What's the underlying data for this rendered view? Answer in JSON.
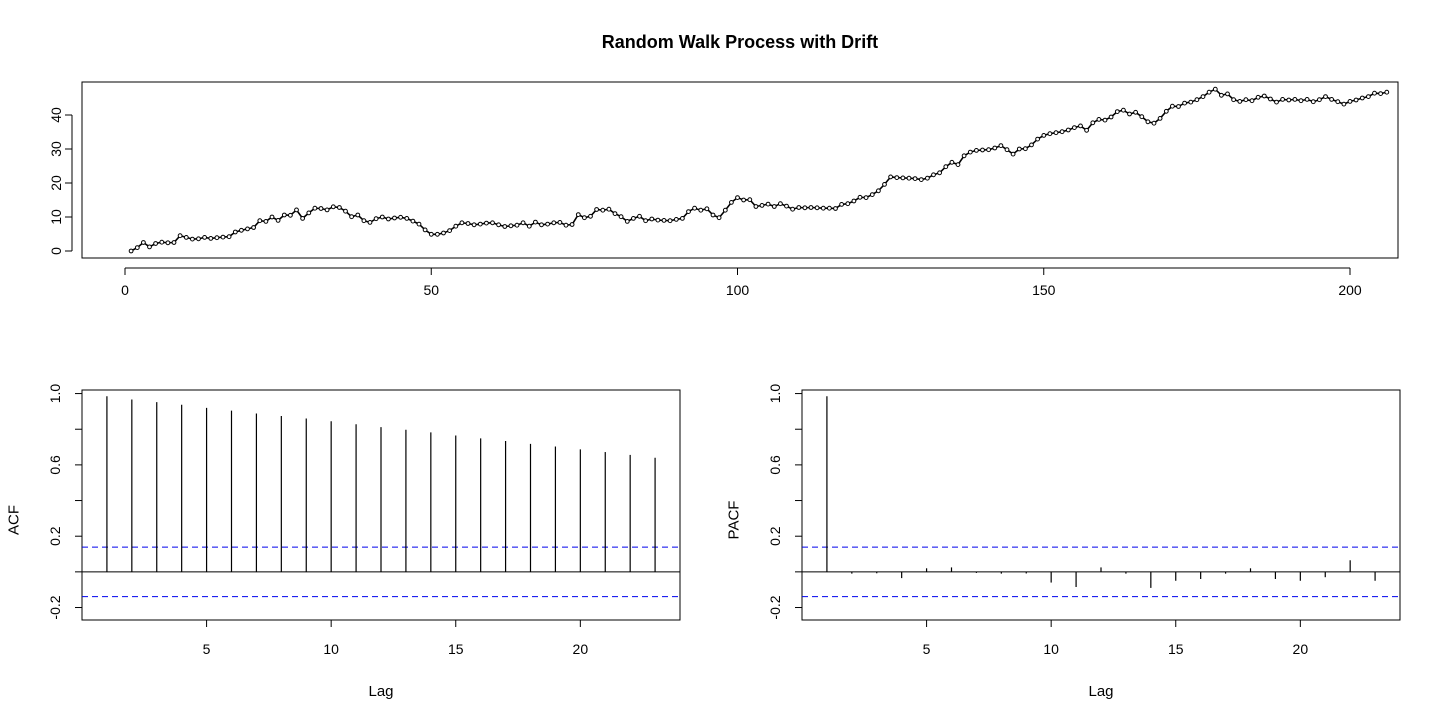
{
  "title": "Random Walk Process with Drift",
  "chart_data": [
    {
      "type": "line",
      "title": "Random Walk Process with Drift",
      "xlabel": "",
      "ylabel": "",
      "xlim": [
        1,
        200
      ],
      "ylim": [
        0,
        48
      ],
      "xticks": [
        0,
        50,
        100,
        150,
        200
      ],
      "yticks": [
        0,
        10,
        20,
        30,
        40
      ],
      "grid": false,
      "marker": "open-circle",
      "x_start": 1,
      "values": [
        0.0,
        1.0,
        2.5,
        1.2,
        2.2,
        2.6,
        2.4,
        2.5,
        4.5,
        4.0,
        3.5,
        3.6,
        4.0,
        3.7,
        3.9,
        4.1,
        4.2,
        5.6,
        6.1,
        6.5,
        6.9,
        8.9,
        8.7,
        10.0,
        9.0,
        10.6,
        10.5,
        12.1,
        9.6,
        11.2,
        12.6,
        12.5,
        12.1,
        13.0,
        12.8,
        11.7,
        10.1,
        10.6,
        8.9,
        8.4,
        9.5,
        10.0,
        9.4,
        9.7,
        9.9,
        9.6,
        8.8,
        7.9,
        6.2,
        4.9,
        4.9,
        5.3,
        6.0,
        7.3,
        8.3,
        8.1,
        7.7,
        7.9,
        8.2,
        8.3,
        7.7,
        7.2,
        7.4,
        7.6,
        8.3,
        7.3,
        8.5,
        7.7,
        7.9,
        8.3,
        8.4,
        7.6,
        7.8,
        10.7,
        9.8,
        10.2,
        12.2,
        12.0,
        12.3,
        11.0,
        10.1,
        8.7,
        9.6,
        10.2,
        8.9,
        9.4,
        9.1,
        9.0,
        8.9,
        9.3,
        9.6,
        11.6,
        12.6,
        12.0,
        12.4,
        10.6,
        9.8,
        12.0,
        14.3,
        15.7,
        15.0,
        15.1,
        13.1,
        13.4,
        13.8,
        13.1,
        13.9,
        13.2,
        12.3,
        12.8,
        12.7,
        12.8,
        12.7,
        12.6,
        12.6,
        12.5,
        13.7,
        13.9,
        14.7,
        15.8,
        15.7,
        16.6,
        17.7,
        19.6,
        21.8,
        21.6,
        21.5,
        21.4,
        21.3,
        21.0,
        21.4,
        22.4,
        23.0,
        24.8,
        26.1,
        25.4,
        28.0,
        29.1,
        29.6,
        29.7,
        29.8,
        30.3,
        31.0,
        29.8,
        28.5,
        30.0,
        30.1,
        31.2,
        32.9,
        34.0,
        34.5,
        34.8,
        35.1,
        35.6,
        36.3,
        36.8,
        35.5,
        37.7,
        38.7,
        38.5,
        39.4,
        41.0,
        41.4,
        40.3,
        40.8,
        39.5,
        38.0,
        37.6,
        39.0,
        41.1,
        42.6,
        42.5,
        43.5,
        43.8,
        44.5,
        45.4,
        46.7,
        47.6,
        45.8,
        46.2,
        44.5,
        44.0,
        44.5,
        44.2,
        45.2,
        45.6,
        44.7,
        43.8,
        44.6,
        44.4,
        44.6,
        44.2,
        44.6,
        43.9,
        44.5,
        45.4,
        44.6,
        43.9,
        43.2,
        44.0,
        44.4,
        45.0,
        45.4,
        46.4,
        46.3,
        46.7
      ]
    },
    {
      "type": "bar",
      "xlabel": "Lag",
      "ylabel": "ACF",
      "xlim": [
        0,
        24
      ],
      "ylim": [
        -0.27,
        1.02
      ],
      "xticks": [
        5,
        10,
        15,
        20
      ],
      "yticks": [
        -0.2,
        0.2,
        0.6,
        1.0
      ],
      "ytick_labels": [
        "-0.2",
        "0.2",
        "0.6",
        "1.0"
      ],
      "grid": false,
      "confidence_limit": 0.139,
      "lags": [
        1,
        2,
        3,
        4,
        5,
        6,
        7,
        8,
        9,
        10,
        11,
        12,
        13,
        14,
        15,
        16,
        17,
        18,
        19,
        20,
        21,
        22,
        23
      ],
      "values": [
        0.985,
        0.967,
        0.952,
        0.937,
        0.92,
        0.904,
        0.888,
        0.874,
        0.86,
        0.845,
        0.828,
        0.812,
        0.797,
        0.782,
        0.765,
        0.749,
        0.734,
        0.718,
        0.703,
        0.687,
        0.672,
        0.656,
        0.64
      ]
    },
    {
      "type": "bar",
      "xlabel": "Lag",
      "ylabel": "PACF",
      "xlim": [
        0,
        24
      ],
      "ylim": [
        -0.27,
        1.02
      ],
      "xticks": [
        5,
        10,
        15,
        20
      ],
      "yticks": [
        -0.2,
        0.2,
        0.6,
        1.0
      ],
      "ytick_labels": [
        "-0.2",
        "0.2",
        "0.6",
        "1.0"
      ],
      "grid": false,
      "confidence_limit": 0.139,
      "lags": [
        1,
        2,
        3,
        4,
        5,
        6,
        7,
        8,
        9,
        10,
        11,
        12,
        13,
        14,
        15,
        16,
        17,
        18,
        19,
        20,
        21,
        22,
        23
      ],
      "values": [
        0.985,
        -0.01,
        -0.008,
        -0.035,
        0.02,
        0.025,
        -0.006,
        -0.01,
        -0.009,
        -0.06,
        -0.085,
        0.025,
        -0.01,
        -0.09,
        -0.05,
        -0.04,
        -0.01,
        0.02,
        -0.04,
        -0.05,
        -0.03,
        0.065,
        -0.05
      ]
    }
  ]
}
